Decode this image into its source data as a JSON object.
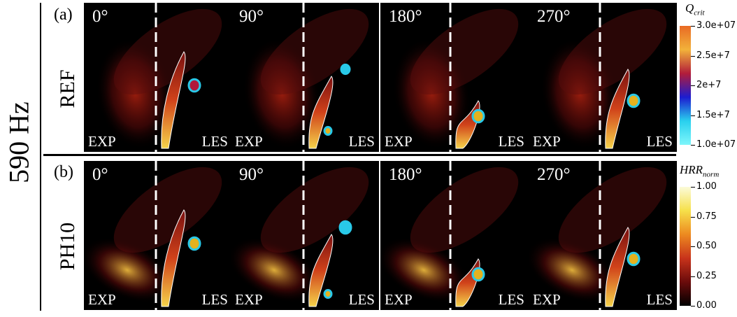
{
  "frequency_label": "590 Hz",
  "rows": [
    {
      "tag": "(a)",
      "case": "REF",
      "panels": [
        {
          "angle": "0°",
          "exp": "EXP",
          "les": "LES"
        },
        {
          "angle": "90°",
          "exp": "EXP",
          "les": "LES"
        },
        {
          "angle": "180°",
          "exp": "EXP",
          "les": "LES"
        },
        {
          "angle": "270°",
          "exp": "EXP",
          "les": "LES"
        }
      ]
    },
    {
      "tag": "(b)",
      "case": "PH10",
      "panels": [
        {
          "angle": "0°",
          "exp": "EXP",
          "les": "LES"
        },
        {
          "angle": "90°",
          "exp": "EXP",
          "les": "LES"
        },
        {
          "angle": "180°",
          "exp": "EXP",
          "les": "LES"
        },
        {
          "angle": "270°",
          "exp": "EXP",
          "les": "LES"
        }
      ]
    }
  ],
  "colorbars": [
    {
      "title": "Q",
      "title_sub": "crit",
      "ticks": [
        "3.0e+07",
        "2.5e+7",
        "2e+7",
        "1.5e+7",
        "1.0e+07"
      ],
      "colors": [
        "#e96a24",
        "#f2b23a",
        "#b21c3a",
        "#1c1cd0",
        "#29d0ee",
        "#7ff6fb"
      ]
    },
    {
      "title": "HRR",
      "title_sub": "norm",
      "ticks": [
        "1.00",
        "0.75",
        "0.50",
        "0.25",
        "0.00"
      ],
      "colors": [
        "#fbfbd9",
        "#f6e04a",
        "#ed8a20",
        "#c8331b",
        "#6a0b0b",
        "#000000"
      ]
    }
  ]
}
